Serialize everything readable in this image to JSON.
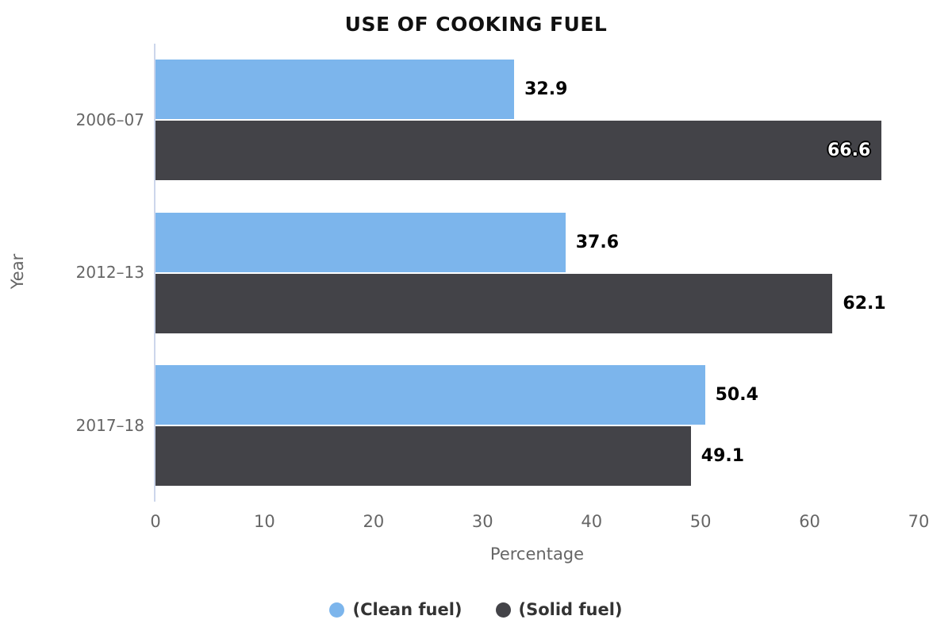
{
  "chart_data": {
    "type": "bar",
    "orientation": "horizontal",
    "title": "USE OF COOKING FUEL",
    "categories": [
      "2006–07",
      "2012–13",
      "2017–18"
    ],
    "series": [
      {
        "name": "(Clean fuel)",
        "color": "#7cb5ec",
        "values": [
          32.9,
          37.6,
          50.4
        ]
      },
      {
        "name": "(Solid fuel)",
        "color": "#434348",
        "values": [
          66.6,
          62.1,
          49.1
        ]
      }
    ],
    "xlabel": "Percentage",
    "ylabel": "Year",
    "xlim": [
      0,
      70
    ],
    "xticks": [
      0,
      10,
      20,
      30,
      40,
      50,
      60,
      70
    ],
    "grid": false,
    "legend_position": "bottom-center",
    "colors": {
      "axis_line": "#ccd6eb",
      "tick_label": "#666666",
      "axis_title": "#666666",
      "title": "#111111",
      "data_label": "#000000",
      "data_label_inside": "#ffffff",
      "legend_text": "#333333",
      "background": "#ffffff"
    }
  }
}
